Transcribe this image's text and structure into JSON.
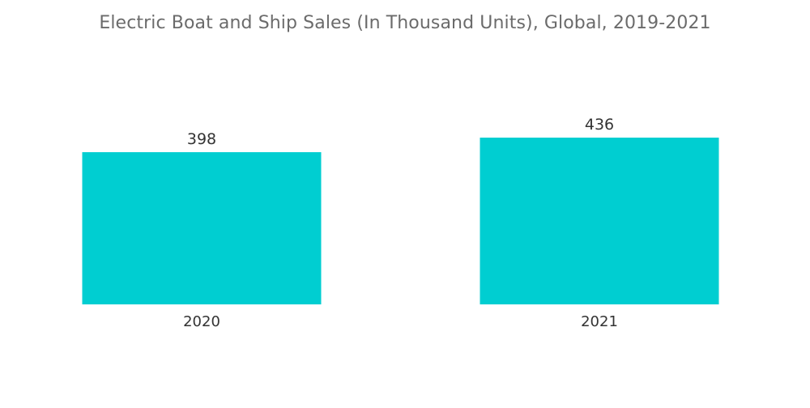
{
  "chart_data": {
    "type": "bar",
    "title": "Electric Boat and Ship Sales (In Thousand Units), Global, 2019-2021",
    "categories": [
      "2020",
      "2021"
    ],
    "values": [
      398,
      436
    ],
    "xlabel": "",
    "ylabel": "",
    "ylim": [
      0,
      436
    ],
    "grid": false,
    "show_data_labels": true,
    "bar_color": "#00CED1",
    "text_color": "#333333",
    "title_color": "#6b6b6b"
  }
}
